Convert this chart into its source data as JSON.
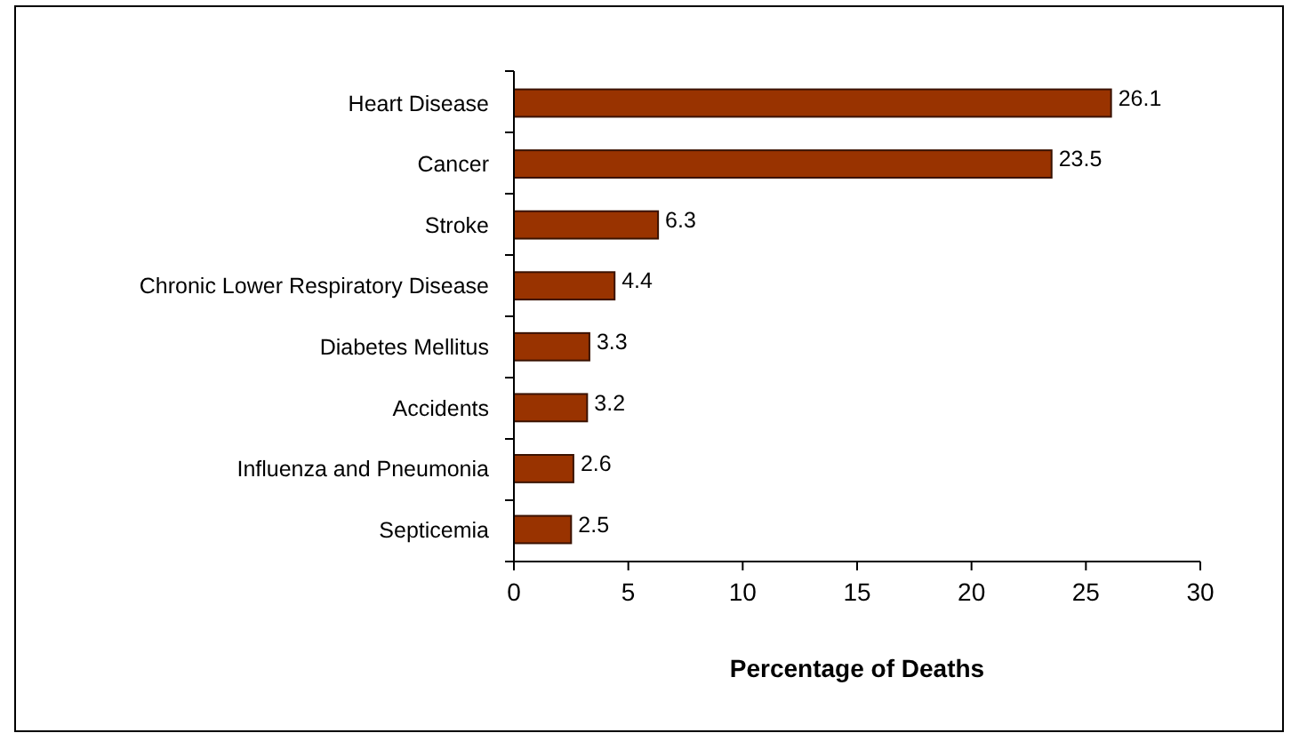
{
  "chart_data": {
    "type": "bar",
    "orientation": "horizontal",
    "xlabel": "Percentage of Deaths",
    "categories": [
      "Heart Disease",
      "Cancer",
      "Stroke",
      "Chronic Lower Respiratory Disease",
      "Diabetes Mellitus",
      "Accidents",
      "Influenza and Pneumonia",
      "Septicemia"
    ],
    "values": [
      26.1,
      23.5,
      6.3,
      4.4,
      3.3,
      3.2,
      2.6,
      2.5
    ],
    "color": "#993300",
    "xlim": [
      0,
      30
    ],
    "xticks": [
      0,
      5,
      10,
      15,
      20,
      25,
      30
    ],
    "data_labels": true
  }
}
